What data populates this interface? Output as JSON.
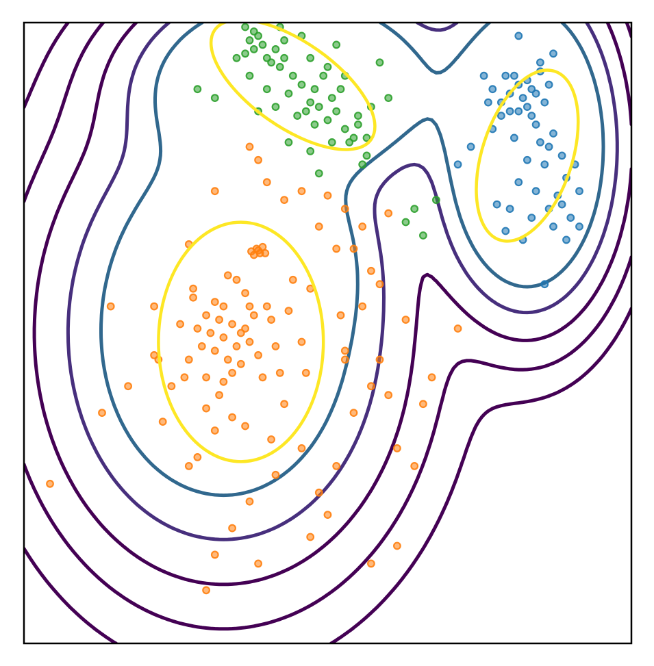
{
  "chart_data": {
    "type": "scatter",
    "title": "",
    "xlabel": "",
    "ylabel": "",
    "xlim": [
      -3.5,
      3.5
    ],
    "ylim": [
      -3.5,
      3.5
    ],
    "ticks_shown": false,
    "grid": false,
    "legend": "none",
    "colors": {
      "frame": "#000000",
      "orange_points": "#ff7f0e",
      "green_points": "#2ca02c",
      "blue_points": "#1f77b4",
      "contour_outer": "#440154",
      "contour_mid": "#472f7d",
      "contour_inner": "#31688e",
      "ellipse": "#fde725"
    },
    "series": [
      {
        "color": "#ff7f0e",
        "centers": [
          [
            -1.2,
            0.0
          ],
          [
            -0.8,
            0.9
          ]
        ],
        "mean": [
          -1.0,
          -0.1
        ],
        "ellipse_radii": [
          0.95,
          1.35
        ],
        "points": [
          [
            -1.2,
            -0.05
          ],
          [
            -1.1,
            0.1
          ],
          [
            -1.3,
            -0.2
          ],
          [
            -1.0,
            0.0
          ],
          [
            -1.25,
            0.15
          ],
          [
            -1.05,
            -0.15
          ],
          [
            -0.95,
            0.05
          ],
          [
            -1.35,
            0.0
          ],
          [
            -1.15,
            -0.3
          ],
          [
            -1.4,
            0.2
          ],
          [
            -0.9,
            -0.1
          ],
          [
            -1.2,
            0.3
          ],
          [
            -1.0,
            -0.35
          ],
          [
            -1.45,
            -0.15
          ],
          [
            -0.85,
            0.2
          ],
          [
            -1.3,
            0.35
          ],
          [
            -1.1,
            -0.45
          ],
          [
            -1.5,
            0.05
          ],
          [
            -0.8,
            -0.25
          ],
          [
            -1.2,
            -0.55
          ],
          [
            -1.6,
            -0.3
          ],
          [
            -0.7,
            0.3
          ],
          [
            -1.4,
            -0.5
          ],
          [
            -0.95,
            0.45
          ],
          [
            -1.55,
            0.4
          ],
          [
            -0.6,
            -0.15
          ],
          [
            -1.25,
            -0.7
          ],
          [
            -1.7,
            0.1
          ],
          [
            -0.75,
            -0.5
          ],
          [
            -1.05,
            0.6
          ],
          [
            -0.82,
            0.95
          ],
          [
            -0.78,
            0.9
          ],
          [
            -0.85,
            0.88
          ],
          [
            -0.75,
            0.97
          ],
          [
            -0.8,
            0.93
          ],
          [
            -0.88,
            0.92
          ],
          [
            -0.72,
            0.9
          ],
          [
            -0.9,
            0.3
          ],
          [
            -0.4,
            0.6
          ],
          [
            -0.3,
            -0.1
          ],
          [
            -0.2,
            0.5
          ],
          [
            -0.5,
            -0.8
          ],
          [
            -1.8,
            -0.6
          ],
          [
            -2.0,
            0.3
          ],
          [
            -1.9,
            -1.0
          ],
          [
            -0.3,
            -1.3
          ],
          [
            -0.1,
            -1.8
          ],
          [
            0.1,
            -1.5
          ],
          [
            -0.6,
            -1.6
          ],
          [
            -1.3,
            -1.1
          ],
          [
            -1.5,
            -1.4
          ],
          [
            -0.9,
            -1.9
          ],
          [
            -1.1,
            -2.2
          ],
          [
            -1.3,
            -2.5
          ],
          [
            -0.8,
            -2.6
          ],
          [
            -1.4,
            -2.9
          ],
          [
            0.2,
            -0.3
          ],
          [
            0.4,
            0.3
          ],
          [
            0.5,
            -0.6
          ],
          [
            0.3,
            -0.9
          ],
          [
            0.6,
            -0.3
          ],
          [
            0.9,
            0.15
          ],
          [
            0.7,
            -0.7
          ],
          [
            0.1,
            0.95
          ],
          [
            -0.1,
            1.2
          ],
          [
            -0.5,
            1.5
          ],
          [
            -0.7,
            1.7
          ],
          [
            -0.8,
            1.95
          ],
          [
            -0.9,
            2.1
          ],
          [
            -0.3,
            1.6
          ],
          [
            0.0,
            1.55
          ],
          [
            0.2,
            1.4
          ],
          [
            0.4,
            1.2
          ],
          [
            0.3,
            0.95
          ],
          [
            0.5,
            0.7
          ],
          [
            0.6,
            0.55
          ],
          [
            0.7,
            1.35
          ],
          [
            -1.3,
            1.6
          ],
          [
            -1.6,
            1.0
          ],
          [
            -2.5,
            0.3
          ],
          [
            -2.6,
            -0.9
          ],
          [
            -3.2,
            -1.7
          ],
          [
            0.8,
            -1.3
          ],
          [
            1.2,
            -0.5
          ],
          [
            1.5,
            0.05
          ],
          [
            1.1,
            -0.8
          ],
          [
            1.0,
            -1.5
          ],
          [
            0.8,
            -2.4
          ],
          [
            0.5,
            -2.6
          ],
          [
            -0.2,
            -2.3
          ],
          [
            0.0,
            -2.05
          ],
          [
            0.2,
            -0.2
          ],
          [
            -1.6,
            -1.5
          ],
          [
            -1.95,
            -0.3
          ],
          [
            -2.3,
            -0.6
          ],
          [
            -1.65,
            -0.5
          ],
          [
            -1.55,
            0.5
          ],
          [
            -1.15,
            0.65
          ],
          [
            -0.65,
            0.15
          ],
          [
            -0.55,
            -0.45
          ],
          [
            -1.1,
            -0.95
          ],
          [
            -0.95,
            -1.05
          ],
          [
            -1.4,
            -0.85
          ],
          [
            0.15,
            0.2
          ],
          [
            -0.45,
            0.25
          ],
          [
            -2.0,
            -0.25
          ],
          [
            -0.25,
            -0.45
          ],
          [
            -0.65,
            -1.2
          ]
        ]
      },
      {
        "color": "#2ca02c",
        "centers": [
          [
            -0.4,
            2.8
          ]
        ],
        "mean": [
          -0.4,
          2.8
        ],
        "ellipse_radii": [
          1.1,
          0.48
        ],
        "ellipse_angle_deg": -35,
        "points": [
          [
            -0.9,
            3.3
          ],
          [
            -0.85,
            3.2
          ],
          [
            -0.8,
            3.35
          ],
          [
            -0.75,
            3.25
          ],
          [
            -0.95,
            3.15
          ],
          [
            -0.7,
            3.1
          ],
          [
            -0.6,
            3.2
          ],
          [
            -0.65,
            3.05
          ],
          [
            -0.85,
            3.4
          ],
          [
            -0.55,
            3.0
          ],
          [
            -0.5,
            3.1
          ],
          [
            -0.4,
            2.9
          ],
          [
            -0.3,
            2.8
          ],
          [
            -0.45,
            2.7
          ],
          [
            -0.2,
            2.6
          ],
          [
            -0.1,
            2.55
          ],
          [
            0.0,
            2.4
          ],
          [
            0.1,
            2.5
          ],
          [
            0.2,
            2.3
          ],
          [
            0.3,
            2.2
          ],
          [
            0.35,
            2.35
          ],
          [
            -0.15,
            2.75
          ],
          [
            0.05,
            2.65
          ],
          [
            -0.25,
            2.5
          ],
          [
            -0.35,
            2.45
          ],
          [
            0.15,
            2.75
          ],
          [
            -0.6,
            2.55
          ],
          [
            -0.7,
            2.75
          ],
          [
            0.45,
            2.2
          ],
          [
            0.25,
            2.15
          ],
          [
            -0.05,
            2.9
          ],
          [
            -0.5,
            3.3
          ],
          [
            -0.3,
            3.35
          ],
          [
            -0.2,
            3.1
          ],
          [
            -1.05,
            3.1
          ],
          [
            -0.95,
            3.45
          ],
          [
            0.0,
            3.0
          ],
          [
            0.5,
            2.55
          ],
          [
            0.45,
            2.0
          ],
          [
            -0.9,
            2.9
          ],
          [
            -0.2,
            2.05
          ],
          [
            -0.45,
            2.15
          ],
          [
            -1.3,
            2.65
          ],
          [
            -1.5,
            2.75
          ],
          [
            -0.3,
            3.6
          ],
          [
            0.7,
            2.65
          ],
          [
            1.0,
            1.4
          ],
          [
            1.25,
            1.5
          ],
          [
            0.9,
            1.25
          ],
          [
            1.1,
            1.1
          ],
          [
            0.4,
            1.9
          ],
          [
            -0.1,
            1.8
          ],
          [
            0.6,
            3.05
          ],
          [
            0.1,
            3.25
          ],
          [
            -0.55,
            3.45
          ],
          [
            0.2,
            2.9
          ],
          [
            -0.8,
            2.5
          ],
          [
            0.35,
            2.45
          ],
          [
            0.05,
            2.15
          ],
          [
            -0.15,
            2.35
          ]
        ]
      },
      {
        "color": "#1f77b4",
        "centers": [
          [
            2.3,
            2.4
          ]
        ],
        "mean": [
          2.3,
          2.0
        ],
        "ellipse_radii": [
          0.52,
          1.0
        ],
        "ellipse_angle_deg": -18,
        "points": [
          [
            2.2,
            2.8
          ],
          [
            2.1,
            2.7
          ],
          [
            2.25,
            2.65
          ],
          [
            2.3,
            2.85
          ],
          [
            2.15,
            2.9
          ],
          [
            2.35,
            2.75
          ],
          [
            2.0,
            2.6
          ],
          [
            2.4,
            2.7
          ],
          [
            2.05,
            2.9
          ],
          [
            2.45,
            2.95
          ],
          [
            2.2,
            2.5
          ],
          [
            2.3,
            2.55
          ],
          [
            2.35,
            2.45
          ],
          [
            2.4,
            2.35
          ],
          [
            2.1,
            2.5
          ],
          [
            2.55,
            2.8
          ],
          [
            2.5,
            2.6
          ],
          [
            2.0,
            2.45
          ],
          [
            1.9,
            2.75
          ],
          [
            1.85,
            2.6
          ],
          [
            2.6,
            2.25
          ],
          [
            2.15,
            2.2
          ],
          [
            2.45,
            2.15
          ],
          [
            2.5,
            1.9
          ],
          [
            2.3,
            1.95
          ],
          [
            2.7,
            2.0
          ],
          [
            2.75,
            1.75
          ],
          [
            2.2,
            1.7
          ],
          [
            2.4,
            1.6
          ],
          [
            2.65,
            1.55
          ],
          [
            2.55,
            1.4
          ],
          [
            2.7,
            1.45
          ],
          [
            2.35,
            1.3
          ],
          [
            2.6,
            1.2
          ],
          [
            2.1,
            1.4
          ],
          [
            1.95,
            1.45
          ],
          [
            1.5,
            1.9
          ],
          [
            1.65,
            2.1
          ],
          [
            2.8,
            1.3
          ],
          [
            2.9,
            1.6
          ],
          [
            2.9,
            1.2
          ],
          [
            2.05,
            1.15
          ],
          [
            1.8,
            2.9
          ],
          [
            2.2,
            3.35
          ],
          [
            2.6,
            3.15
          ],
          [
            2.45,
            3.05
          ],
          [
            2.75,
            1.05
          ],
          [
            1.9,
            2.3
          ],
          [
            2.85,
            1.9
          ],
          [
            2.55,
            2.1
          ],
          [
            2.25,
            1.05
          ],
          [
            2.5,
            0.55
          ]
        ]
      }
    ]
  }
}
